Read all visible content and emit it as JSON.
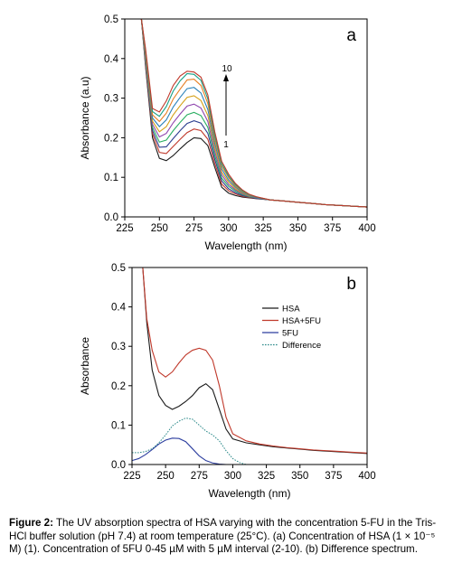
{
  "chart_data": [
    {
      "type": "line",
      "panel_label": "a",
      "xlabel": "Wavelength (nm)",
      "ylabel": "Absorbance (a.u)",
      "xlim": [
        225,
        400
      ],
      "ylim": [
        0.0,
        0.5
      ],
      "xticks": [
        225,
        250,
        275,
        300,
        325,
        350,
        375,
        400
      ],
      "yticks": [
        0.0,
        0.1,
        0.2,
        0.3,
        0.4,
        0.5
      ],
      "xtick_labels": [
        "225",
        "250",
        "275",
        "300",
        "325",
        "350",
        "375",
        "400"
      ],
      "ytick_labels": [
        "0.0",
        "0.1",
        "0.2",
        "0.3",
        "0.4",
        "0.5"
      ],
      "grid": false,
      "annotation": {
        "top": "10",
        "bottom": "1",
        "arrow": "up"
      },
      "x": [
        237,
        240,
        245,
        250,
        255,
        260,
        265,
        270,
        275,
        280,
        285,
        290,
        295,
        300,
        305,
        310,
        315,
        320,
        330,
        340,
        350,
        360,
        370,
        380,
        390,
        400
      ],
      "series": [
        {
          "values": [
            0.5,
            0.38,
            0.2,
            0.148,
            0.142,
            0.155,
            0.172,
            0.188,
            0.2,
            0.198,
            0.18,
            0.125,
            0.075,
            0.06,
            0.054,
            0.05,
            0.048,
            0.046,
            0.043,
            0.04,
            0.037,
            0.034,
            0.031,
            0.029,
            0.027,
            0.025
          ],
          "color": "#1a1a1a"
        },
        {
          "values": [
            0.5,
            0.385,
            0.21,
            0.163,
            0.16,
            0.178,
            0.196,
            0.213,
            0.222,
            0.218,
            0.196,
            0.135,
            0.083,
            0.066,
            0.058,
            0.052,
            0.049,
            0.047,
            0.043,
            0.04,
            0.037,
            0.034,
            0.031,
            0.029,
            0.027,
            0.025
          ],
          "color": "#c0392b"
        },
        {
          "values": [
            0.5,
            0.39,
            0.218,
            0.176,
            0.177,
            0.198,
            0.218,
            0.236,
            0.243,
            0.237,
            0.211,
            0.145,
            0.091,
            0.071,
            0.061,
            0.054,
            0.05,
            0.047,
            0.043,
            0.04,
            0.037,
            0.034,
            0.031,
            0.029,
            0.027,
            0.025
          ],
          "color": "#2c3e8f"
        },
        {
          "values": [
            0.5,
            0.395,
            0.226,
            0.189,
            0.194,
            0.218,
            0.239,
            0.258,
            0.264,
            0.256,
            0.226,
            0.155,
            0.098,
            0.077,
            0.065,
            0.056,
            0.051,
            0.048,
            0.043,
            0.04,
            0.037,
            0.034,
            0.031,
            0.029,
            0.027,
            0.025
          ],
          "color": "#27ae60"
        },
        {
          "values": [
            0.5,
            0.4,
            0.234,
            0.202,
            0.211,
            0.238,
            0.26,
            0.28,
            0.285,
            0.275,
            0.241,
            0.165,
            0.106,
            0.082,
            0.068,
            0.058,
            0.052,
            0.048,
            0.043,
            0.04,
            0.037,
            0.034,
            0.031,
            0.029,
            0.027,
            0.025
          ],
          "color": "#8e44ad"
        },
        {
          "values": [
            0.5,
            0.405,
            0.242,
            0.215,
            0.228,
            0.258,
            0.281,
            0.302,
            0.306,
            0.294,
            0.256,
            0.175,
            0.113,
            0.088,
            0.071,
            0.06,
            0.053,
            0.049,
            0.043,
            0.04,
            0.037,
            0.034,
            0.031,
            0.029,
            0.027,
            0.025
          ],
          "color": "#d4a017"
        },
        {
          "values": [
            0.5,
            0.41,
            0.25,
            0.228,
            0.245,
            0.278,
            0.302,
            0.324,
            0.327,
            0.313,
            0.271,
            0.185,
            0.121,
            0.093,
            0.075,
            0.062,
            0.054,
            0.049,
            0.043,
            0.04,
            0.037,
            0.034,
            0.031,
            0.029,
            0.027,
            0.025
          ],
          "color": "#2980b9"
        },
        {
          "values": [
            0.5,
            0.415,
            0.258,
            0.241,
            0.262,
            0.298,
            0.323,
            0.346,
            0.348,
            0.332,
            0.286,
            0.195,
            0.128,
            0.099,
            0.078,
            0.064,
            0.055,
            0.05,
            0.043,
            0.04,
            0.037,
            0.034,
            0.031,
            0.029,
            0.027,
            0.025
          ],
          "color": "#e67e22"
        },
        {
          "values": [
            0.5,
            0.42,
            0.266,
            0.254,
            0.279,
            0.318,
            0.344,
            0.362,
            0.36,
            0.345,
            0.298,
            0.205,
            0.134,
            0.103,
            0.081,
            0.066,
            0.056,
            0.05,
            0.043,
            0.04,
            0.037,
            0.034,
            0.031,
            0.029,
            0.027,
            0.025
          ],
          "color": "#16a085"
        },
        {
          "values": [
            0.5,
            0.425,
            0.274,
            0.265,
            0.293,
            0.332,
            0.356,
            0.368,
            0.366,
            0.353,
            0.308,
            0.215,
            0.14,
            0.108,
            0.084,
            0.068,
            0.057,
            0.051,
            0.043,
            0.04,
            0.037,
            0.034,
            0.031,
            0.029,
            0.027,
            0.025
          ],
          "color": "#c0392b"
        }
      ]
    },
    {
      "type": "line",
      "panel_label": "b",
      "xlabel": "Wavelength (nm)",
      "ylabel": "Absorbance",
      "xlim": [
        225,
        400
      ],
      "ylim": [
        0.0,
        0.5
      ],
      "xticks": [
        225,
        250,
        275,
        300,
        325,
        350,
        375,
        400
      ],
      "yticks": [
        0.0,
        0.1,
        0.2,
        0.3,
        0.4,
        0.5
      ],
      "xtick_labels": [
        "225",
        "250",
        "275",
        "300",
        "325",
        "350",
        "375",
        "400"
      ],
      "ytick_labels": [
        "0.0",
        "0.1",
        "0.2",
        "0.3",
        "0.4",
        "0.5"
      ],
      "grid": false,
      "legend_position": "top-right",
      "series": [
        {
          "name": "HSA",
          "color": "#1a1a1a",
          "x": [
            233,
            236,
            240,
            245,
            250,
            255,
            260,
            265,
            270,
            275,
            280,
            285,
            290,
            295,
            300,
            310,
            320,
            330,
            340,
            350,
            360,
            380,
            400
          ],
          "values": [
            0.5,
            0.36,
            0.24,
            0.175,
            0.15,
            0.14,
            0.148,
            0.16,
            0.175,
            0.195,
            0.205,
            0.19,
            0.14,
            0.09,
            0.065,
            0.055,
            0.05,
            0.045,
            0.042,
            0.039,
            0.036,
            0.032,
            0.028
          ]
        },
        {
          "name": "HSA+5FU",
          "color": "#c0392b",
          "x": [
            233,
            236,
            240,
            245,
            250,
            255,
            260,
            265,
            270,
            275,
            280,
            285,
            290,
            295,
            300,
            310,
            320,
            330,
            340,
            350,
            360,
            380,
            400
          ],
          "values": [
            0.5,
            0.37,
            0.29,
            0.235,
            0.222,
            0.235,
            0.258,
            0.278,
            0.29,
            0.295,
            0.29,
            0.265,
            0.2,
            0.12,
            0.078,
            0.06,
            0.052,
            0.047,
            0.043,
            0.04,
            0.037,
            0.033,
            0.029
          ]
        },
        {
          "name": "5FU",
          "color": "#2c3e9f",
          "x": [
            225,
            230,
            235,
            240,
            245,
            250,
            255,
            260,
            265,
            270,
            275,
            280,
            285,
            290,
            295
          ],
          "values": [
            0.01,
            0.015,
            0.025,
            0.038,
            0.052,
            0.062,
            0.067,
            0.066,
            0.058,
            0.04,
            0.022,
            0.01,
            0.004,
            0.001,
            0.0
          ]
        },
        {
          "name": "Difference",
          "color": "#2e8b8b",
          "x": [
            225,
            230,
            235,
            240,
            245,
            250,
            255,
            260,
            265,
            270,
            275,
            280,
            285,
            290,
            295,
            300,
            305,
            310
          ],
          "values": [
            0.03,
            0.03,
            0.033,
            0.04,
            0.055,
            0.075,
            0.098,
            0.11,
            0.118,
            0.115,
            0.1,
            0.085,
            0.075,
            0.06,
            0.035,
            0.015,
            0.005,
            0.0
          ]
        }
      ]
    }
  ],
  "caption": {
    "lead": "Figure 2:",
    "text": " The UV absorption spectra of HSA varying with the concentration 5-FU in the Tris-HCl buffer solution (pH 7.4) at room temperature (25°C). (a) Concentration of HSA (1 × 10⁻⁵ M) (1). Concentration of 5FU 0-45 µM with 5 µM interval (2-10). (b) Difference spectrum."
  }
}
